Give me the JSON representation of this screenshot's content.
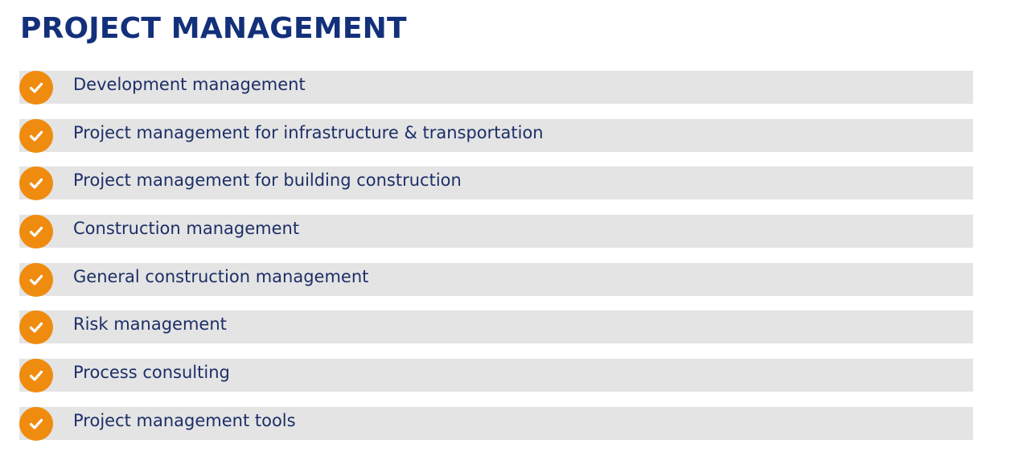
{
  "header": {
    "title": "PROJECT MANAGEMENT"
  },
  "colors": {
    "title": "#13307a",
    "text": "#1c2f67",
    "accent": "#ef8b0f",
    "row_background": "#e4e4e4"
  },
  "services": {
    "icon": "checkmark-circle-icon",
    "items": [
      {
        "label": "Development management"
      },
      {
        "label": "Project management for infrastructure & transportation"
      },
      {
        "label": "Project management for building construction"
      },
      {
        "label": "Construction management"
      },
      {
        "label": "General construction management"
      },
      {
        "label": "Risk management"
      },
      {
        "label": "Process consulting"
      },
      {
        "label": "Project management tools"
      }
    ]
  }
}
